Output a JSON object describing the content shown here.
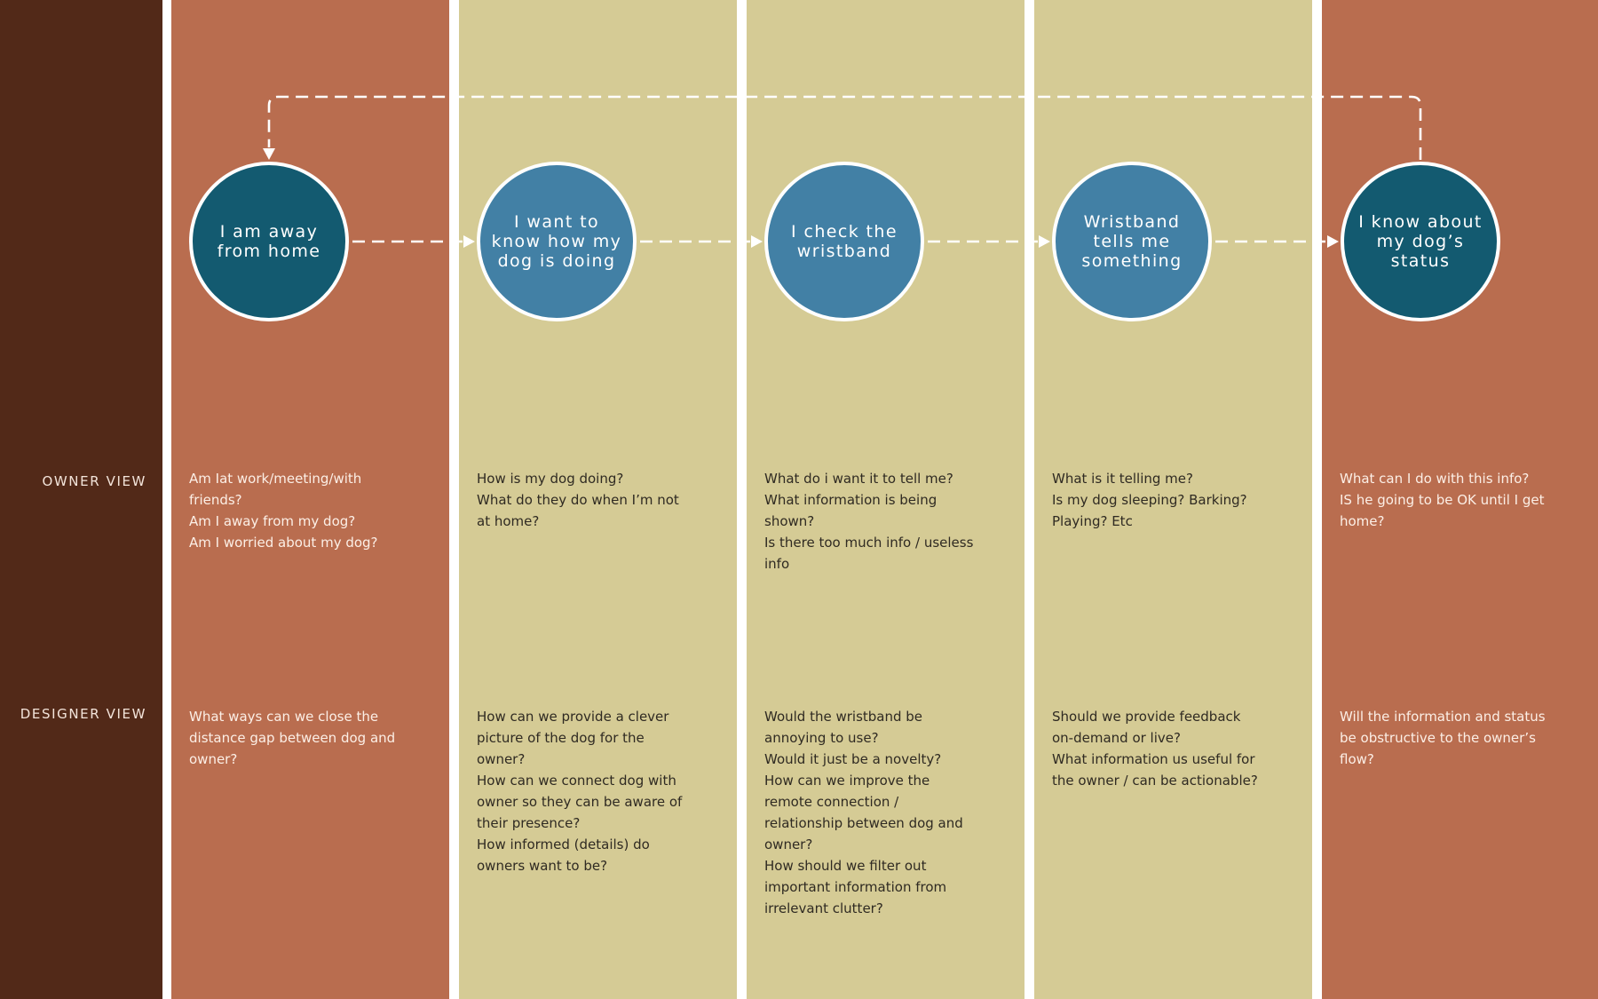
{
  "colors": {
    "label_column": "#522918",
    "rust": "#b96d4f",
    "sand": "#d5cb95",
    "node_dark": "#135a70",
    "node_light": "#4280a5",
    "separator": "#ffffff"
  },
  "row_labels": {
    "owner": "OWNER VIEW",
    "designer": "DESIGNER VIEW"
  },
  "stages": [
    {
      "theme": "rust",
      "node_style": "dark",
      "node": [
        "I am away",
        "from home"
      ],
      "owner": [
        "Am Iat work/meeting/with",
        "friends?",
        "Am I away from my dog?",
        "Am I worried about my dog?"
      ],
      "designer": [
        "What ways can we close the",
        "distance gap between dog and",
        "owner?"
      ]
    },
    {
      "theme": "sand",
      "node_style": "light",
      "node": [
        "I want to",
        "know how my",
        "dog is doing"
      ],
      "owner": [
        "How is my dog doing?",
        "What do they do when I’m not",
        "at home?"
      ],
      "designer": [
        "How can we provide a clever",
        "picture of the dog for the",
        "owner?",
        "How can we connect dog with",
        "owner so they can be aware of",
        "their presence?",
        "How informed (details) do",
        "owners want to be?"
      ]
    },
    {
      "theme": "sand",
      "node_style": "light",
      "node": [
        "I check the",
        "wristband"
      ],
      "owner": [
        "What do i want it to tell me?",
        "What information is being",
        "shown?",
        "Is there too much info / useless",
        "info"
      ],
      "designer": [
        "Would the wristband be",
        "annoying to use?",
        "Would it just be a novelty?",
        "How can we improve the",
        "remote connection /",
        "relationship between dog and",
        "owner?",
        "How should we filter out",
        "important information from",
        "irrelevant clutter?"
      ]
    },
    {
      "theme": "sand",
      "node_style": "light",
      "node": [
        "Wristband",
        "tells me",
        "something"
      ],
      "owner": [
        "What is it telling me?",
        "Is my dog sleeping? Barking?",
        "Playing? Etc"
      ],
      "designer": [
        "Should we provide feedback",
        "on-demand or live?",
        "What information us useful for",
        "the owner / can be actionable?"
      ]
    },
    {
      "theme": "rust",
      "node_style": "dark",
      "node": [
        "I know about",
        "my dog’s",
        "status"
      ],
      "owner": [
        "What can I do with this info?",
        "IS he going to be OK until I get",
        "home?"
      ],
      "designer": [
        "Will the information and status",
        "be obstructive to the owner’s",
        "flow?"
      ]
    }
  ]
}
